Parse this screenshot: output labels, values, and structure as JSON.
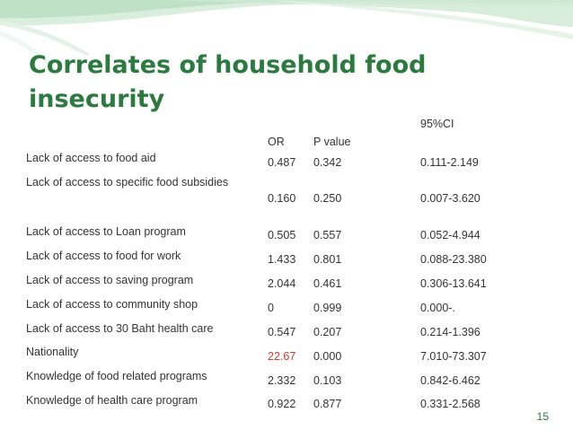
{
  "slide": {
    "title_line1": "Correlates of household food",
    "title_line2": "insecurity",
    "page_number": "15",
    "accent_color": "#2b7a3f",
    "highlight_color": "#d33a2a"
  },
  "table": {
    "headers": {
      "ci_group": "95%CI",
      "or": "OR",
      "p": "P value"
    },
    "rows": [
      {
        "label": "Lack of access to food aid",
        "or": "0.487",
        "p": "0.342",
        "ci": "0.111-2.149"
      },
      {
        "label": "Lack of access to specific food subsidies",
        "or": "0.160",
        "p": "0.250",
        "ci": "0.007-3.620"
      },
      {
        "label": "Lack of access to Loan program",
        "or": "0.505",
        "p": "0.557",
        "ci": "0.052-4.944"
      },
      {
        "label": "Lack of access to food for work",
        "or": "1.433",
        "p": "0.801",
        "ci": "0.088-23.380"
      },
      {
        "label": "Lack of access to saving program",
        "or": "2.044",
        "p": "0.461",
        "ci": "0.306-13.641"
      },
      {
        "label": "Lack of access to community shop",
        "or": "0",
        "p": "0.999",
        "ci": "0.000-."
      },
      {
        "label": "Lack of access to 30 Baht health care",
        "or": "0.547",
        "p": "0.207",
        "ci": "0.214-1.396"
      },
      {
        "label": "Nationality",
        "or": "22.67",
        "p": "0.000",
        "ci": "7.010-73.307"
      },
      {
        "label": "Knowledge of food related programs",
        "or": "2.332",
        "p": "0.103",
        "ci": "0.842-6.462"
      },
      {
        "label": "Knowledge of health care program",
        "or": "0.922",
        "p": "0.877",
        "ci": "0.331-2.568"
      }
    ]
  }
}
